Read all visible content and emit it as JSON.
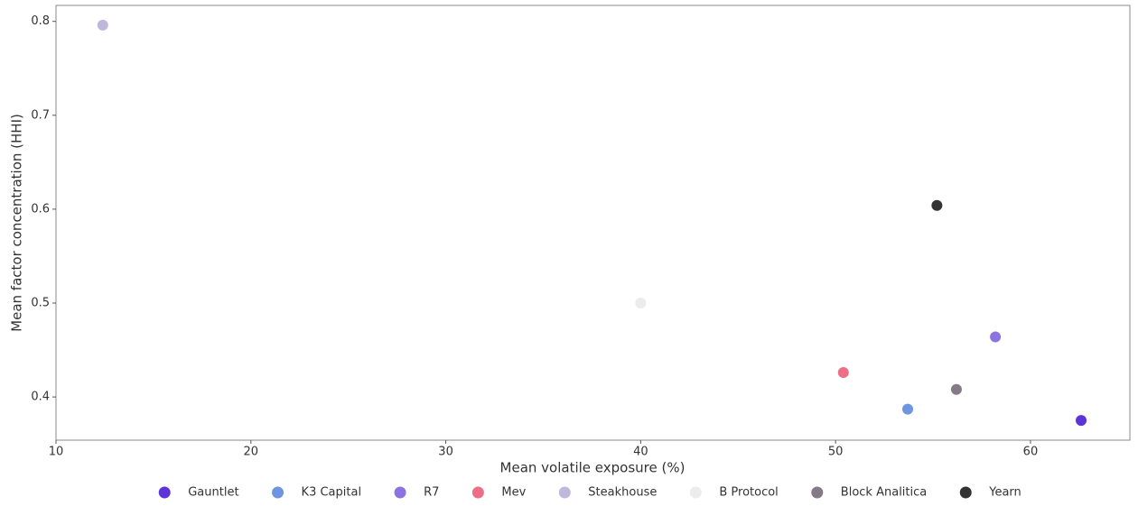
{
  "chart_data": {
    "type": "scatter",
    "x_label": "Mean volatile exposure (%)",
    "y_label": "Mean factor concentration (HHI)",
    "xlim": [
      10,
      65.1
    ],
    "ylim": [
      0.354,
      0.817
    ],
    "xticks": [
      10,
      20,
      30,
      40,
      50,
      60
    ],
    "yticks": [
      0.4,
      0.5,
      0.6,
      0.7,
      0.8
    ],
    "grid": false,
    "legend": "bottom",
    "series": [
      {
        "name": "Gauntlet",
        "color": "#5b35d8",
        "x": [
          62.6
        ],
        "values": [
          0.375
        ]
      },
      {
        "name": "K3 Capital",
        "color": "#6f95e0",
        "x": [
          53.7
        ],
        "values": [
          0.387
        ]
      },
      {
        "name": "R7",
        "color": "#8c74e0",
        "x": [
          58.2
        ],
        "values": [
          0.464
        ]
      },
      {
        "name": "Mev",
        "color": "#ee6e86",
        "x": [
          50.4
        ],
        "values": [
          0.426
        ]
      },
      {
        "name": "Steakhouse",
        "color": "#c0b8dc",
        "x": [
          12.4
        ],
        "values": [
          0.796
        ]
      },
      {
        "name": "B Protocol",
        "color": "#ececec",
        "x": [
          40.0
        ],
        "values": [
          0.5
        ]
      },
      {
        "name": "Block Analitica",
        "color": "#857a87",
        "x": [
          56.2
        ],
        "values": [
          0.408
        ]
      },
      {
        "name": "Yearn",
        "color": "#333333",
        "x": [
          55.2
        ],
        "values": [
          0.604
        ]
      }
    ]
  }
}
